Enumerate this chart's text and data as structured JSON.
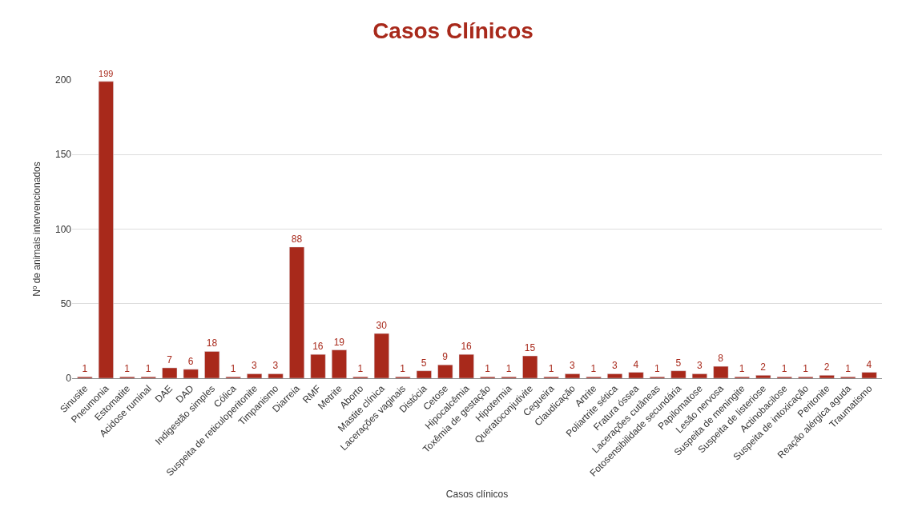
{
  "chart_data": {
    "type": "bar",
    "title": "Casos Clínicos",
    "xlabel": "Casos clínicos",
    "ylabel": "Nº de animais intervencionados",
    "categories": [
      "Sinusite",
      "Pneumonia",
      "Estomatite",
      "Acidose ruminal",
      "DAE",
      "DAD",
      "Indigestão simples",
      "Cólica",
      "Suspeita de reticuloperitonite",
      "Timpanismo",
      "Diarreia",
      "RMF",
      "Metrite",
      "Aborto",
      "Mastite clínica",
      "Lacerações vaginais",
      "Distócia",
      "Cetose",
      "Hipocalcêmia",
      "Toxêmia de gestação",
      "Hipotermia",
      "Queratoconjutivite",
      "Cegueira",
      "Claudicação",
      "Artrite",
      "Poliartrite sética",
      "Fratura óssea",
      "Lacerações cutâneas",
      "Fotosensibilidade secundária",
      "Papilomatose",
      "Lesão nervosa",
      "Suspeita de meningite",
      "Suspeita de listeriose",
      "Actinobacilose",
      "Suspeita de intoxicação",
      "Peritonite",
      "Reação alérgica aguda",
      "Traumatismo"
    ],
    "values": [
      1,
      199,
      1,
      1,
      7,
      6,
      18,
      1,
      3,
      3,
      88,
      16,
      19,
      1,
      30,
      1,
      5,
      9,
      16,
      1,
      1,
      15,
      1,
      3,
      1,
      3,
      4,
      1,
      5,
      3,
      8,
      1,
      2,
      1,
      1,
      2,
      1,
      4
    ],
    "color": "#a8291b",
    "ylim": [
      0,
      200
    ],
    "yticks": [
      0,
      50,
      100,
      150,
      200
    ],
    "grid": "y",
    "data_labels": true
  }
}
